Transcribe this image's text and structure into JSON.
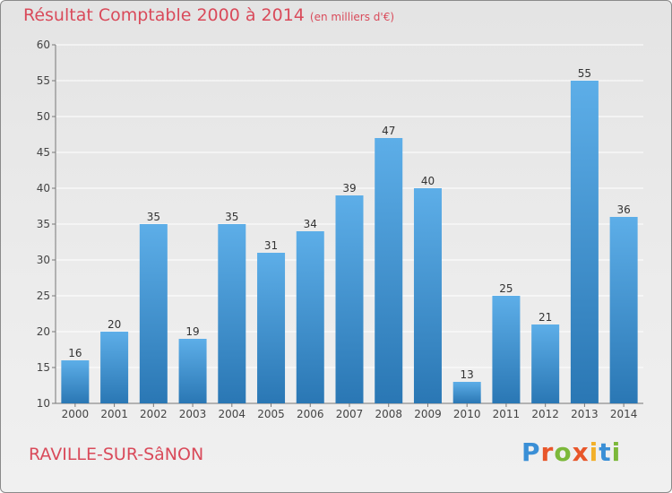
{
  "header": {
    "title": "Résultat Comptable 2000 à 2014",
    "subtitle": "(en milliers d'€)"
  },
  "footer": {
    "commune": "RAVILLE-SUR-SâNON",
    "logo_text": "Proxiti"
  },
  "colors": {
    "title": "#d94a5a",
    "bar_top": "#5daee8",
    "bar_bottom": "#2a77b4",
    "logo": [
      "#3a8fd6",
      "#e8562a",
      "#7cb83a",
      "#e8562a",
      "#f2b02a",
      "#3a8fd6",
      "#7cb83a"
    ]
  },
  "chart_data": {
    "type": "bar",
    "categories": [
      "2000",
      "2001",
      "2002",
      "2003",
      "2004",
      "2005",
      "2006",
      "2007",
      "2008",
      "2009",
      "2010",
      "2011",
      "2012",
      "2013",
      "2014"
    ],
    "values": [
      16,
      20,
      35,
      19,
      35,
      31,
      34,
      39,
      47,
      40,
      13,
      25,
      21,
      55,
      36
    ],
    "data_labels": [
      "16",
      "20",
      "35",
      "19",
      "35",
      "31",
      "34",
      "39",
      "47",
      "40",
      "13",
      "25",
      "21",
      "55",
      "36"
    ],
    "yticks": [
      "10",
      "15",
      "20",
      "25",
      "30",
      "35",
      "40",
      "45",
      "50",
      "55",
      "60"
    ],
    "ylim": [
      10,
      60
    ],
    "grid": true,
    "legend": "none"
  }
}
